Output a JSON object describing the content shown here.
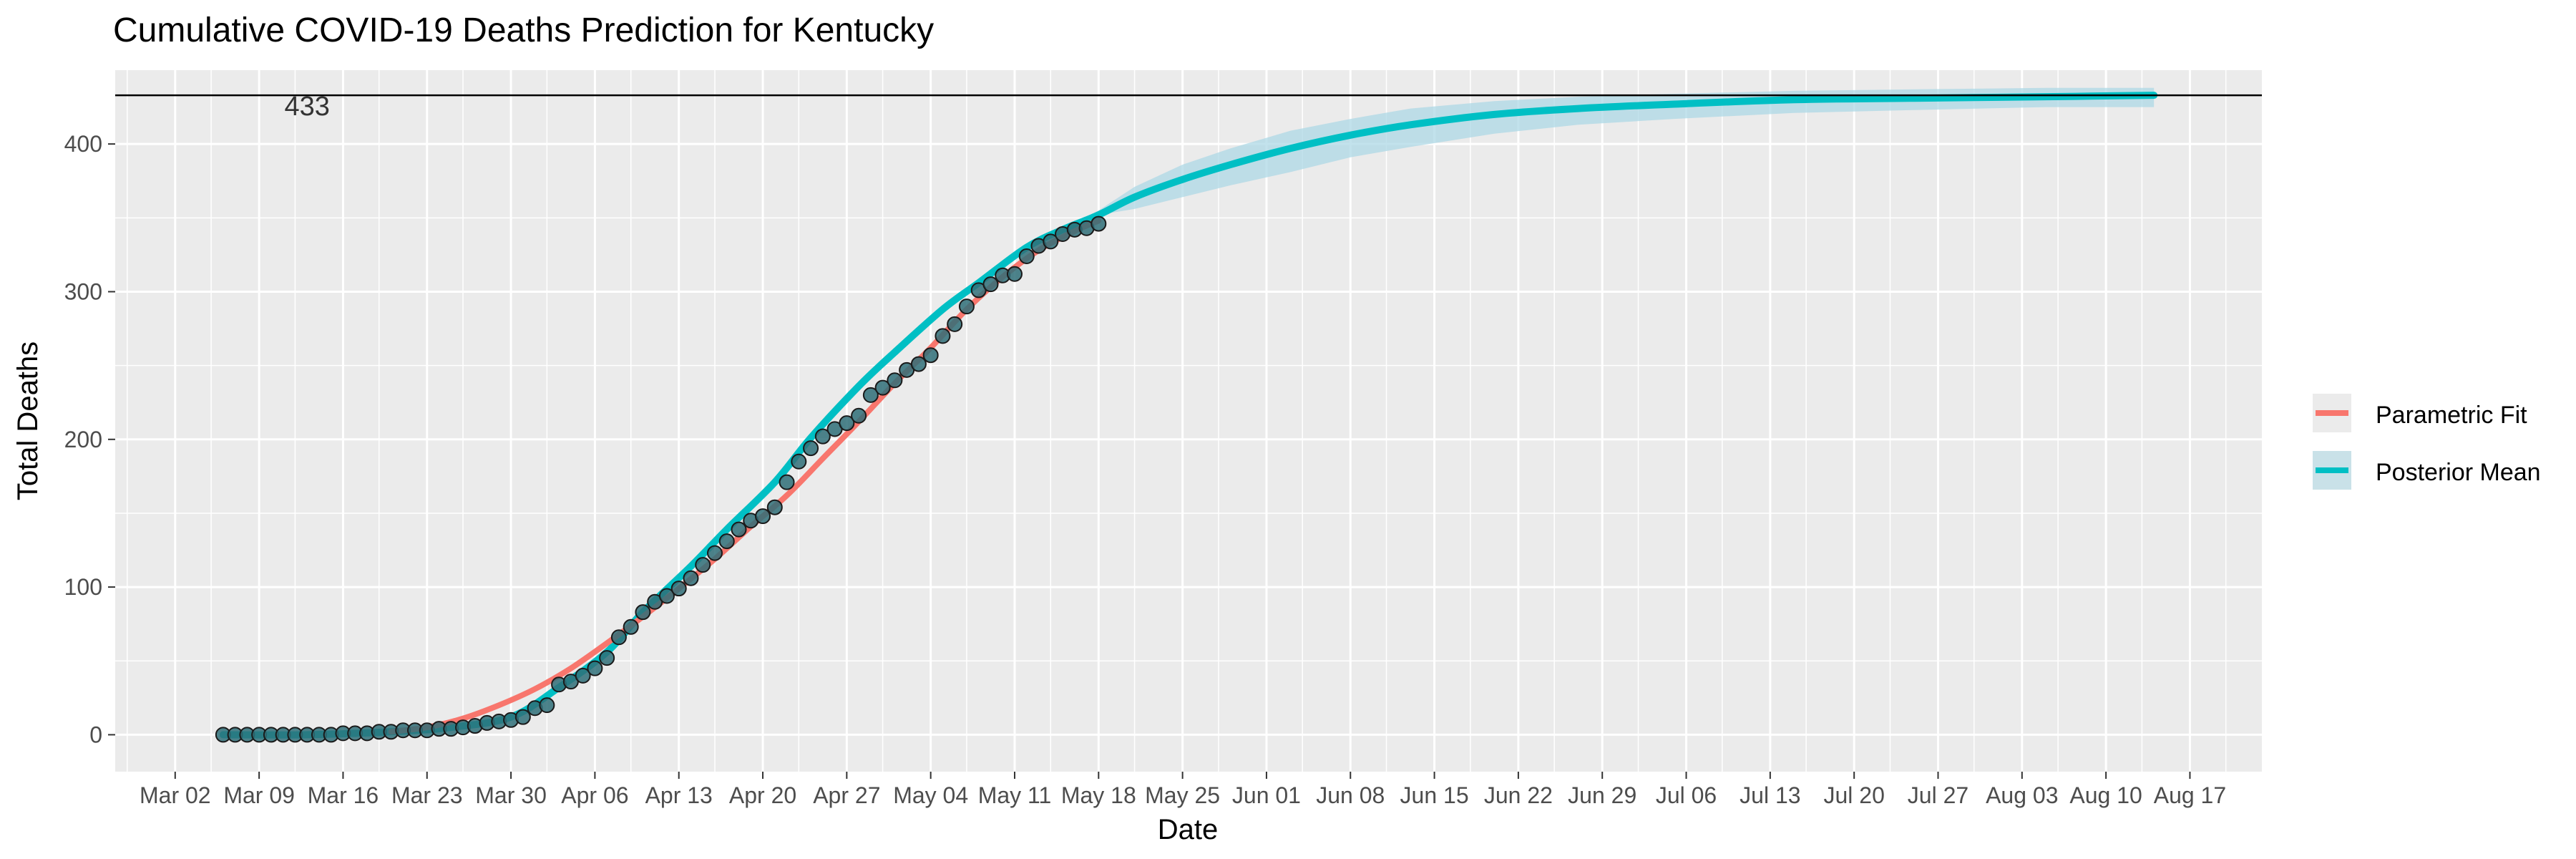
{
  "chart_data": {
    "type": "line",
    "title": "Cumulative COVID-19 Deaths Prediction for Kentucky",
    "xlabel": "Date",
    "ylabel": "Total Deaths",
    "x_domain": [
      "2020-02-26",
      "2020-08-23"
    ],
    "ylim": [
      -25,
      450
    ],
    "y_ticks": [
      0,
      100,
      200,
      300,
      400
    ],
    "x_ticks": [
      {
        "date": "2020-03-02",
        "label": "Mar 02"
      },
      {
        "date": "2020-03-09",
        "label": "Mar 09"
      },
      {
        "date": "2020-03-16",
        "label": "Mar 16"
      },
      {
        "date": "2020-03-23",
        "label": "Mar 23"
      },
      {
        "date": "2020-03-30",
        "label": "Mar 30"
      },
      {
        "date": "2020-04-06",
        "label": "Apr 06"
      },
      {
        "date": "2020-04-13",
        "label": "Apr 13"
      },
      {
        "date": "2020-04-20",
        "label": "Apr 20"
      },
      {
        "date": "2020-04-27",
        "label": "Apr 27"
      },
      {
        "date": "2020-05-04",
        "label": "May 04"
      },
      {
        "date": "2020-05-11",
        "label": "May 11"
      },
      {
        "date": "2020-05-18",
        "label": "May 18"
      },
      {
        "date": "2020-05-25",
        "label": "May 25"
      },
      {
        "date": "2020-06-01",
        "label": "Jun 01"
      },
      {
        "date": "2020-06-08",
        "label": "Jun 08"
      },
      {
        "date": "2020-06-15",
        "label": "Jun 15"
      },
      {
        "date": "2020-06-22",
        "label": "Jun 22"
      },
      {
        "date": "2020-06-29",
        "label": "Jun 29"
      },
      {
        "date": "2020-07-06",
        "label": "Jul 06"
      },
      {
        "date": "2020-07-13",
        "label": "Jul 13"
      },
      {
        "date": "2020-07-20",
        "label": "Jul 20"
      },
      {
        "date": "2020-07-27",
        "label": "Jul 27"
      },
      {
        "date": "2020-08-03",
        "label": "Aug 03"
      },
      {
        "date": "2020-08-10",
        "label": "Aug 10"
      },
      {
        "date": "2020-08-17",
        "label": "Aug 17"
      }
    ],
    "hline": {
      "y": 433,
      "label": "433",
      "label_date": "2020-03-13"
    },
    "grid": true,
    "legend_position": "right",
    "observed": {
      "dates": [
        "2020-03-06",
        "2020-03-07",
        "2020-03-08",
        "2020-03-09",
        "2020-03-10",
        "2020-03-11",
        "2020-03-12",
        "2020-03-13",
        "2020-03-14",
        "2020-03-15",
        "2020-03-16",
        "2020-03-17",
        "2020-03-18",
        "2020-03-19",
        "2020-03-20",
        "2020-03-21",
        "2020-03-22",
        "2020-03-23",
        "2020-03-24",
        "2020-03-25",
        "2020-03-26",
        "2020-03-27",
        "2020-03-28",
        "2020-03-29",
        "2020-03-30",
        "2020-03-31",
        "2020-04-01",
        "2020-04-02",
        "2020-04-03",
        "2020-04-04",
        "2020-04-05",
        "2020-04-06",
        "2020-04-07",
        "2020-04-08",
        "2020-04-09",
        "2020-04-10",
        "2020-04-11",
        "2020-04-12",
        "2020-04-13",
        "2020-04-14",
        "2020-04-15",
        "2020-04-16",
        "2020-04-17",
        "2020-04-18",
        "2020-04-19",
        "2020-04-20",
        "2020-04-21",
        "2020-04-22",
        "2020-04-23",
        "2020-04-24",
        "2020-04-25",
        "2020-04-26",
        "2020-04-27",
        "2020-04-28",
        "2020-04-29",
        "2020-04-30",
        "2020-05-01",
        "2020-05-02",
        "2020-05-03",
        "2020-05-04",
        "2020-05-05",
        "2020-05-06",
        "2020-05-07",
        "2020-05-08",
        "2020-05-09",
        "2020-05-10",
        "2020-05-11",
        "2020-05-12",
        "2020-05-13",
        "2020-05-14",
        "2020-05-15",
        "2020-05-16",
        "2020-05-17",
        "2020-05-18"
      ],
      "values": [
        0,
        0,
        0,
        0,
        0,
        0,
        0,
        0,
        0,
        0,
        1,
        1,
        1,
        2,
        2,
        3,
        3,
        3,
        4,
        4,
        5,
        6,
        8,
        9,
        10,
        12,
        18,
        20,
        34,
        36,
        40,
        45,
        52,
        66,
        73,
        83,
        90,
        94,
        99,
        106,
        115,
        123,
        131,
        139,
        145,
        148,
        154,
        171,
        185,
        194,
        202,
        207,
        211,
        216,
        230,
        235,
        240,
        247,
        251,
        257,
        270,
        278,
        290,
        301,
        305,
        311,
        312,
        324,
        331,
        334,
        339,
        342,
        343,
        346
      ]
    },
    "series": [
      {
        "name": "Parametric Fit",
        "color": "#F8766D",
        "line_width": 4,
        "dates": [
          "2020-03-20",
          "2020-03-23",
          "2020-03-26",
          "2020-03-29",
          "2020-04-01",
          "2020-04-04",
          "2020-04-07",
          "2020-04-10",
          "2020-04-13",
          "2020-04-16",
          "2020-04-19",
          "2020-04-22",
          "2020-04-25",
          "2020-04-28",
          "2020-05-01",
          "2020-05-04",
          "2020-05-07",
          "2020-05-10",
          "2020-05-13",
          "2020-05-16",
          "2020-05-18"
        ],
        "values": [
          2,
          5,
          11,
          20,
          31,
          45,
          62,
          80,
          99,
          119,
          141,
          162,
          187,
          212,
          238,
          262,
          288,
          310,
          328,
          341,
          348
        ]
      },
      {
        "name": "Posterior Mean",
        "color": "#00BFC4",
        "line_width": 5,
        "dates": [
          "2020-03-06",
          "2020-03-13",
          "2020-03-20",
          "2020-03-25",
          "2020-03-30",
          "2020-04-03",
          "2020-04-07",
          "2020-04-10",
          "2020-04-14",
          "2020-04-17",
          "2020-04-21",
          "2020-04-24",
          "2020-04-28",
          "2020-05-01",
          "2020-05-05",
          "2020-05-08",
          "2020-05-12",
          "2020-05-15",
          "2020-05-18",
          "2020-05-21",
          "2020-05-25",
          "2020-05-29",
          "2020-06-03",
          "2020-06-08",
          "2020-06-13",
          "2020-06-20",
          "2020-06-27",
          "2020-07-05",
          "2020-07-15",
          "2020-07-25",
          "2020-08-05",
          "2020-08-14"
        ],
        "values": [
          0,
          0,
          2,
          5,
          12,
          32,
          56,
          83,
          114,
          139,
          171,
          201,
          236,
          259,
          288,
          306,
          330,
          342,
          352,
          364,
          376,
          386,
          397,
          406,
          413,
          420,
          424,
          427,
          430,
          431,
          432,
          433
        ],
        "band_lower": [
          0,
          0,
          2,
          5,
          12,
          32,
          56,
          83,
          114,
          139,
          171,
          201,
          236,
          259,
          288,
          306,
          330,
          342,
          352,
          356,
          364,
          372,
          381,
          391,
          398,
          407,
          413,
          417,
          421,
          423,
          425,
          425
        ],
        "band_upper": [
          0,
          0,
          2,
          5,
          12,
          32,
          56,
          83,
          114,
          139,
          171,
          201,
          236,
          259,
          288,
          306,
          330,
          342,
          355,
          371,
          386,
          397,
          409,
          417,
          424,
          429,
          432,
          434,
          436,
          437,
          438,
          438
        ]
      }
    ]
  },
  "legend": [
    {
      "label": "Parametric Fit",
      "color": "#F8766D"
    },
    {
      "label": "Posterior Mean",
      "color": "#00BFC4"
    }
  ]
}
